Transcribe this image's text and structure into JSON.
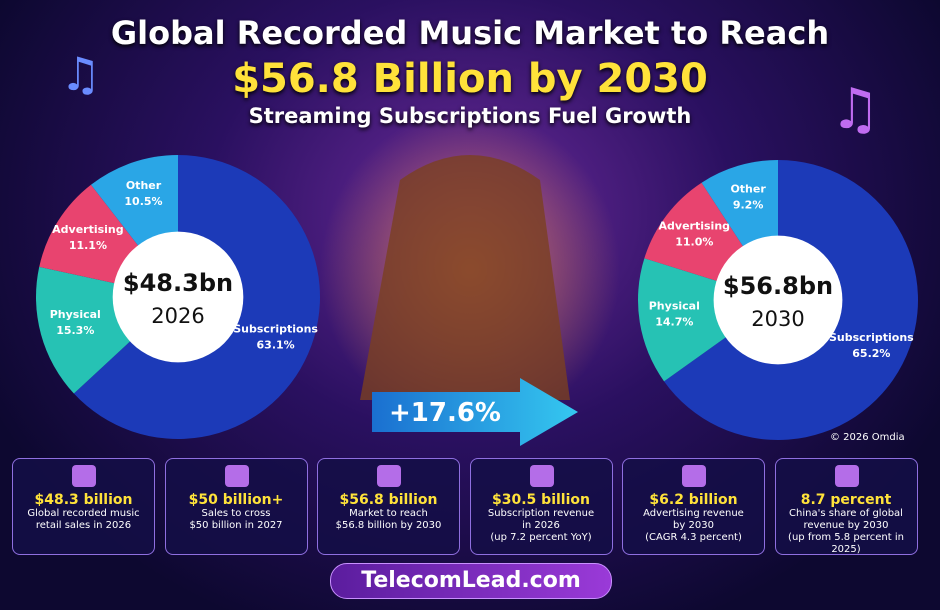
{
  "header": {
    "title": "Global Recorded Music Market to Reach",
    "headline": "$56.8 Billion by 2030",
    "subtitle": "Streaming Subscriptions Fuel Growth"
  },
  "chart_data": [
    {
      "type": "pie",
      "categories": [
        "Subscriptions",
        "Physical",
        "Advertising",
        "Other"
      ],
      "values": [
        63.1,
        15.3,
        11.1,
        10.5
      ],
      "value_labels": [
        "63.1%",
        "15.3%",
        "11.1%",
        "10.5%"
      ],
      "colors": [
        "#1c3ab8",
        "#26c2b4",
        "#e8446f",
        "#2aa6e6"
      ],
      "center_label": "$48.3bn",
      "center_sublabel": "2026"
    },
    {
      "type": "pie",
      "categories": [
        "Subscriptions",
        "Physical",
        "Advertising",
        "Other"
      ],
      "values": [
        65.2,
        14.7,
        11.0,
        9.2
      ],
      "value_labels": [
        "65.2%",
        "14.7%",
        "11.0%",
        "9.2%"
      ],
      "colors": [
        "#1c3ab8",
        "#26c2b4",
        "#e8446f",
        "#2aa6e6"
      ],
      "center_label": "$56.8bn",
      "center_sublabel": "2030"
    }
  ],
  "growth": "+17.6%",
  "credit": "© 2026 Omdia",
  "stats": [
    {
      "headline": "$48.3 billion",
      "lines": [
        "Global recorded music",
        "retail sales in 2026"
      ]
    },
    {
      "headline": "$50 billion+",
      "lines": [
        "Sales to cross",
        "$50 billion in 2027"
      ]
    },
    {
      "headline": "$56.8 billion",
      "lines": [
        "Market to reach",
        "$56.8 billion by 2030"
      ]
    },
    {
      "headline": "$30.5 billion",
      "lines": [
        "Subscription revenue",
        "in 2026",
        "(up 7.2 percent YoY)"
      ]
    },
    {
      "headline": "$6.2 billion",
      "lines": [
        "Advertising revenue",
        "by 2030",
        "(CAGR 4.3 percent)"
      ]
    },
    {
      "headline": "8.7 percent",
      "lines": [
        "China's share of global",
        "revenue by 2030",
        "(up from 5.8 percent in 2025)"
      ]
    }
  ],
  "footer": "TelecomLead.com"
}
